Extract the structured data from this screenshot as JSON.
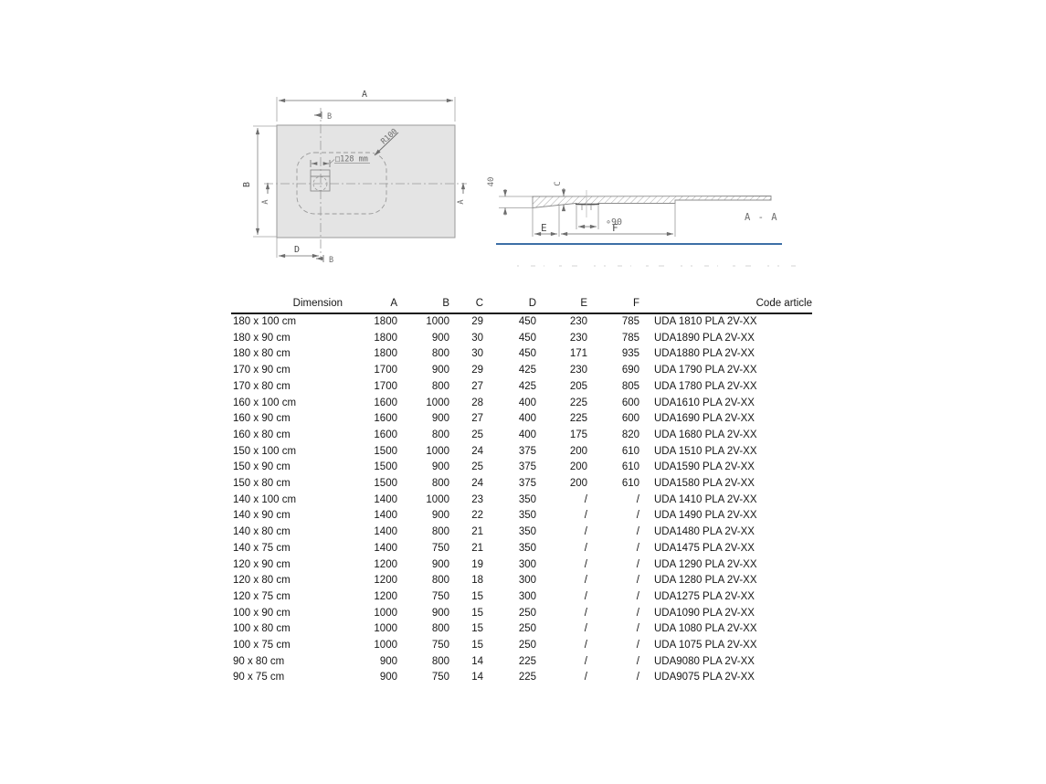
{
  "drawing": {
    "plan": {
      "dim_a": "A",
      "dim_b_left": "B",
      "dim_d": "D",
      "section_mark_b_top": "B",
      "section_mark_b_bottom": "B",
      "section_mark_a_left": "A",
      "section_mark_a_right": "A",
      "drain_size_label": "□128 mm",
      "corner_radius_label": "R100"
    },
    "section": {
      "edge_height_label": "40",
      "depth_label": "C",
      "drain_diameter_label": "∘90",
      "dim_e": "E",
      "dim_f": "F",
      "view_label": "A - A"
    },
    "colors": {
      "line_gray": "#8f8f8f",
      "tray_fill": "#e4e4e4",
      "baseline_blue": "#3d6fa6"
    }
  },
  "table": {
    "headers": [
      "Dimension",
      "A",
      "B",
      "C",
      "D",
      "E",
      "F",
      "Code article"
    ],
    "rows": [
      [
        "180 x 100 cm",
        "1800",
        "1000",
        "29",
        "450",
        "230",
        "785",
        "UDA 1810 PLA 2V-XX"
      ],
      [
        "180 x 90 cm",
        "1800",
        "900",
        "30",
        "450",
        "230",
        "785",
        "UDA1890 PLA 2V-XX"
      ],
      [
        "180 x 80 cm",
        "1800",
        "800",
        "30",
        "450",
        "171",
        "935",
        "UDA1880 PLA 2V-XX"
      ],
      [
        "170 x 90 cm",
        "1700",
        "900",
        "29",
        "425",
        "230",
        "690",
        "UDA 1790 PLA 2V-XX"
      ],
      [
        "170 x 80 cm",
        "1700",
        "800",
        "27",
        "425",
        "205",
        "805",
        "UDA 1780 PLA 2V-XX"
      ],
      [
        "160 x 100 cm",
        "1600",
        "1000",
        "28",
        "400",
        "225",
        "600",
        "UDA1610 PLA 2V-XX"
      ],
      [
        "160 x 90 cm",
        "1600",
        "900",
        "27",
        "400",
        "225",
        "600",
        "UDA1690 PLA 2V-XX"
      ],
      [
        "160 x 80 cm",
        "1600",
        "800",
        "25",
        "400",
        "175",
        "820",
        "UDA 1680 PLA 2V-XX"
      ],
      [
        "150 x 100 cm",
        "1500",
        "1000",
        "24",
        "375",
        "200",
        "610",
        "UDA 1510 PLA 2V-XX"
      ],
      [
        "150 x 90 cm",
        "1500",
        "900",
        "25",
        "375",
        "200",
        "610",
        "UDA1590 PLA 2V-XX"
      ],
      [
        "150 x 80 cm",
        "1500",
        "800",
        "24",
        "375",
        "200",
        "610",
        "UDA1580 PLA 2V-XX"
      ],
      [
        "140 x 100 cm",
        "1400",
        "1000",
        "23",
        "350",
        "/",
        "/",
        "UDA 1410 PLA 2V-XX"
      ],
      [
        "140 x 90 cm",
        "1400",
        "900",
        "22",
        "350",
        "/",
        "/",
        "UDA 1490 PLA 2V-XX"
      ],
      [
        "140 x 80 cm",
        "1400",
        "800",
        "21",
        "350",
        "/",
        "/",
        "UDA1480 PLA 2V-XX"
      ],
      [
        "140 x 75 cm",
        "1400",
        "750",
        "21",
        "350",
        "/",
        "/",
        "UDA1475 PLA 2V-XX"
      ],
      [
        "120 x 90 cm",
        "1200",
        "900",
        "19",
        "300",
        "/",
        "/",
        "UDA 1290 PLA 2V-XX"
      ],
      [
        "120 x 80 cm",
        "1200",
        "800",
        "18",
        "300",
        "/",
        "/",
        "UDA 1280 PLA 2V-XX"
      ],
      [
        "120 x 75 cm",
        "1200",
        "750",
        "15",
        "300",
        "/",
        "/",
        "UDA1275 PLA 2V-XX"
      ],
      [
        "100 x 90 cm",
        "1000",
        "900",
        "15",
        "250",
        "/",
        "/",
        "UDA1090 PLA 2V-XX"
      ],
      [
        "100 x 80 cm",
        "1000",
        "800",
        "15",
        "250",
        "/",
        "/",
        "UDA 1080 PLA 2V-XX"
      ],
      [
        "100 x 75 cm",
        "1000",
        "750",
        "15",
        "250",
        "/",
        "/",
        "UDA 1075 PLA 2V-XX"
      ],
      [
        "90 x 80 cm",
        "900",
        "800",
        "14",
        "225",
        "/",
        "/",
        "UDA9080 PLA 2V-XX"
      ],
      [
        "90 x 75 cm",
        "900",
        "750",
        "14",
        "225",
        "/",
        "/",
        "UDA9075 PLA 2V-XX"
      ]
    ]
  }
}
